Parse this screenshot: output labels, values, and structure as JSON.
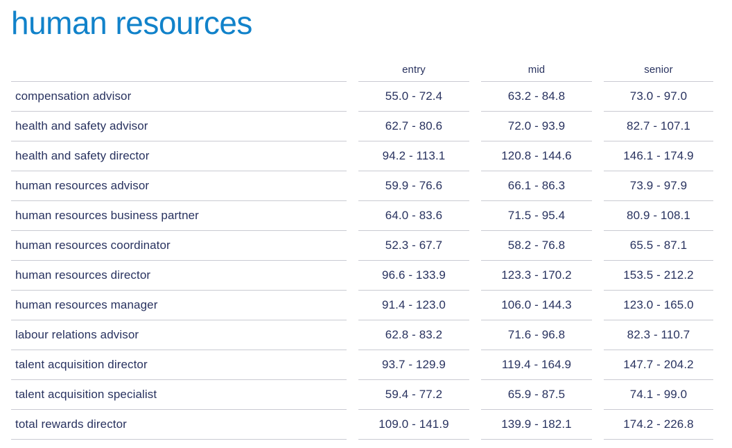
{
  "title": "human resources",
  "colors": {
    "accent": "#1182ca",
    "text": "#28325f",
    "line": "#c9cad2",
    "background": "#ffffff"
  },
  "table": {
    "columns": [
      "entry",
      "mid",
      "senior"
    ],
    "rows": [
      {
        "role": "compensation advisor",
        "entry": "55.0 - 72.4",
        "mid": "63.2 - 84.8",
        "senior": "73.0 - 97.0"
      },
      {
        "role": "health and safety advisor",
        "entry": "62.7 - 80.6",
        "mid": "72.0 - 93.9",
        "senior": "82.7 - 107.1"
      },
      {
        "role": "health and safety director",
        "entry": "94.2 - 113.1",
        "mid": "120.8 - 144.6",
        "senior": "146.1 - 174.9"
      },
      {
        "role": "human resources advisor",
        "entry": "59.9 - 76.6",
        "mid": "66.1 - 86.3",
        "senior": "73.9 - 97.9"
      },
      {
        "role": "human resources business partner",
        "entry": "64.0 - 83.6",
        "mid": "71.5 - 95.4",
        "senior": "80.9 - 108.1"
      },
      {
        "role": "human resources coordinator",
        "entry": "52.3 - 67.7",
        "mid": "58.2 - 76.8",
        "senior": "65.5 - 87.1"
      },
      {
        "role": "human resources director",
        "entry": "96.6 - 133.9",
        "mid": "123.3 - 170.2",
        "senior": "153.5 - 212.2"
      },
      {
        "role": "human resources manager",
        "entry": "91.4 - 123.0",
        "mid": "106.0 - 144.3",
        "senior": "123.0 - 165.0"
      },
      {
        "role": "labour relations advisor",
        "entry": "62.8 - 83.2",
        "mid": "71.6 - 96.8",
        "senior": "82.3 - 110.7"
      },
      {
        "role": "talent acquisition director",
        "entry": "93.7 - 129.9",
        "mid": "119.4 - 164.9",
        "senior": "147.7 - 204.2"
      },
      {
        "role": "talent acquisition specialist",
        "entry": "59.4 - 77.2",
        "mid": "65.9 - 87.5",
        "senior": "74.1 - 99.0"
      },
      {
        "role": "total rewards director",
        "entry": "109.0 - 141.9",
        "mid": "139.9 - 182.1",
        "senior": "174.2 - 226.8"
      }
    ]
  }
}
